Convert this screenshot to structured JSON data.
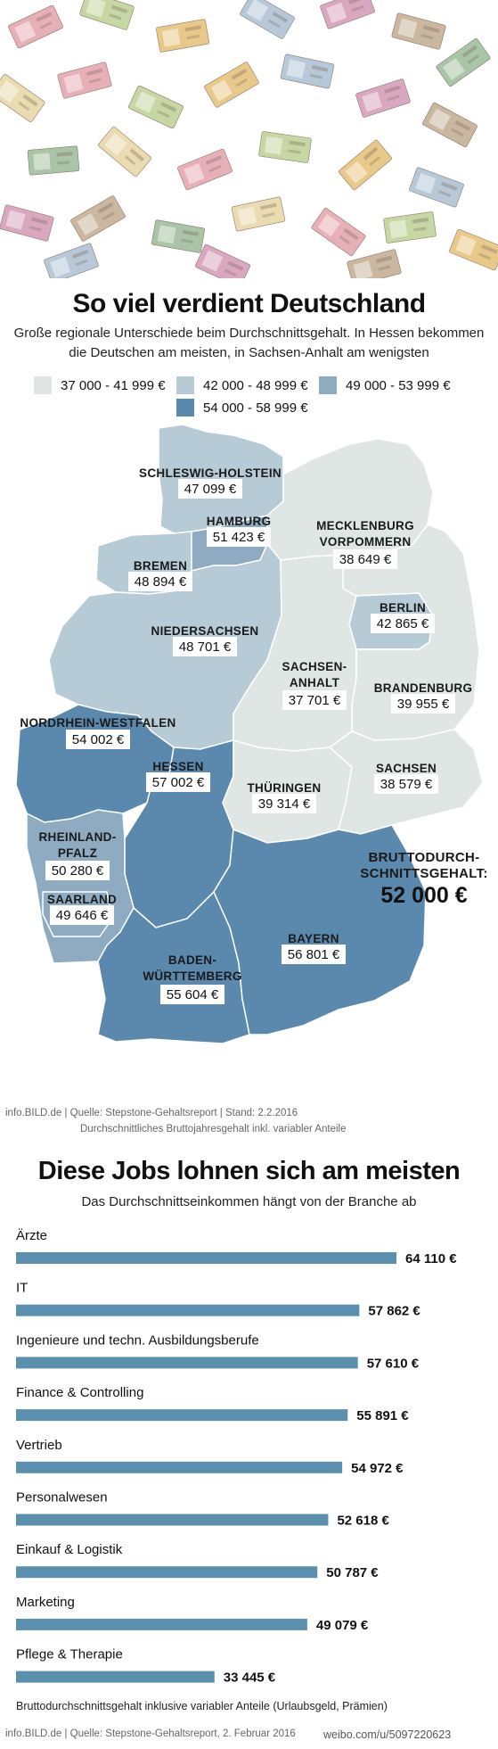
{
  "header": {
    "title": "So viel verdient Deutschland",
    "subtitle_line1": "Große regionale Unterschiede beim Durchschnittsgehalt. In Hessen bekommen",
    "subtitle_line2": "die Deutschen am meisten, in Sachsen-Anhalt am wenigsten"
  },
  "colors": {
    "bin1": "#dfe6e3",
    "bin2": "#b6cbd6",
    "bin3": "#8eabc2",
    "bin4": "#5b88ad",
    "bar": "#5b8fb0"
  },
  "legend": [
    {
      "label": "37 000 - 41 999 €",
      "color": "#dfe6e3"
    },
    {
      "label": "42 000 - 48 999 €",
      "color": "#b6cbd6"
    },
    {
      "label": "49 000 - 53 999 €",
      "color": "#8eabc2"
    },
    {
      "label": "54 000 - 58 999 €",
      "color": "#5b88ad"
    }
  ],
  "chart_data": [
    {
      "type": "map",
      "regions": [
        {
          "name": "SCHLESWIG-HOLSTEIN",
          "value": "47 099 €",
          "bin": 2
        },
        {
          "name": "HAMBURG",
          "value": "51 423 €",
          "bin": 3
        },
        {
          "name": "MECKLENBURG VORPOMMERN",
          "value": "38 649 €",
          "bin": 1
        },
        {
          "name": "BREMEN",
          "value": "48 894 €",
          "bin": 2
        },
        {
          "name": "BERLIN",
          "value": "42 865 €",
          "bin": 2
        },
        {
          "name": "NIEDERSACHSEN",
          "value": "48 701 €",
          "bin": 2
        },
        {
          "name": "SACHSEN-ANHALT",
          "value": "37 701 €",
          "bin": 1
        },
        {
          "name": "BRANDENBURG",
          "value": "39 955 €",
          "bin": 1
        },
        {
          "name": "NORDRHEIN-WESTFALEN",
          "value": "54 002 €",
          "bin": 4
        },
        {
          "name": "HESSEN",
          "value": "57 002 €",
          "bin": 4
        },
        {
          "name": "THÜRINGEN",
          "value": "39 314 €",
          "bin": 1
        },
        {
          "name": "SACHSEN",
          "value": "38 579 €",
          "bin": 1
        },
        {
          "name": "RHEINLAND-PFALZ",
          "value": "50 280 €",
          "bin": 3
        },
        {
          "name": "SAARLAND",
          "value": "49 646 €",
          "bin": 3
        },
        {
          "name": "BAYERN",
          "value": "56 801 €",
          "bin": 4
        },
        {
          "name": "BADEN-WÜRTTEMBERG",
          "value": "55 604 €",
          "bin": 4
        }
      ],
      "national": {
        "label_line1": "BRUTTODURCH-",
        "label_line2": "SCHNITTSGEHALT:",
        "value": "52 000 €"
      }
    },
    {
      "type": "bar",
      "title": "Diese Jobs lohnen sich am meisten",
      "subtitle": "Das Durchschnittseinkommen hängt von der Branche ab",
      "categories": [
        "Ärzte",
        "IT",
        "Ingenieure und techn. Ausbildungsberufe",
        "Finance & Controlling",
        "Vertrieb",
        "Personalwesen",
        "Einkauf & Logistik",
        "Marketing",
        "Pflege & Therapie"
      ],
      "values": [
        64110,
        57862,
        57610,
        55891,
        54972,
        52618,
        50787,
        49079,
        33445
      ],
      "value_labels": [
        "64 110 €",
        "57 862 €",
        "57 610 €",
        "55 891 €",
        "54 972 €",
        "52 618 €",
        "50 787 €",
        "49 079 €",
        "33 445 €"
      ]
    }
  ],
  "map_source": {
    "line1": "info.BILD.de | Quelle: Stepstone-Gehaltsreport | Stand: 2.2.2016",
    "line2": "Durchschnittliches Bruttojahresgehalt inkl. variabler Anteile"
  },
  "jobs_footnote": "Bruttodurchschnittsgehalt inklusive variabler Anteile (Urlaubsgeld, Prämien)",
  "jobs_source": "info.BILD.de | Quelle: Stepstone-Gehaltsreport, 2. Februar 2016",
  "watermark": "weibo.com/u/5097220623"
}
